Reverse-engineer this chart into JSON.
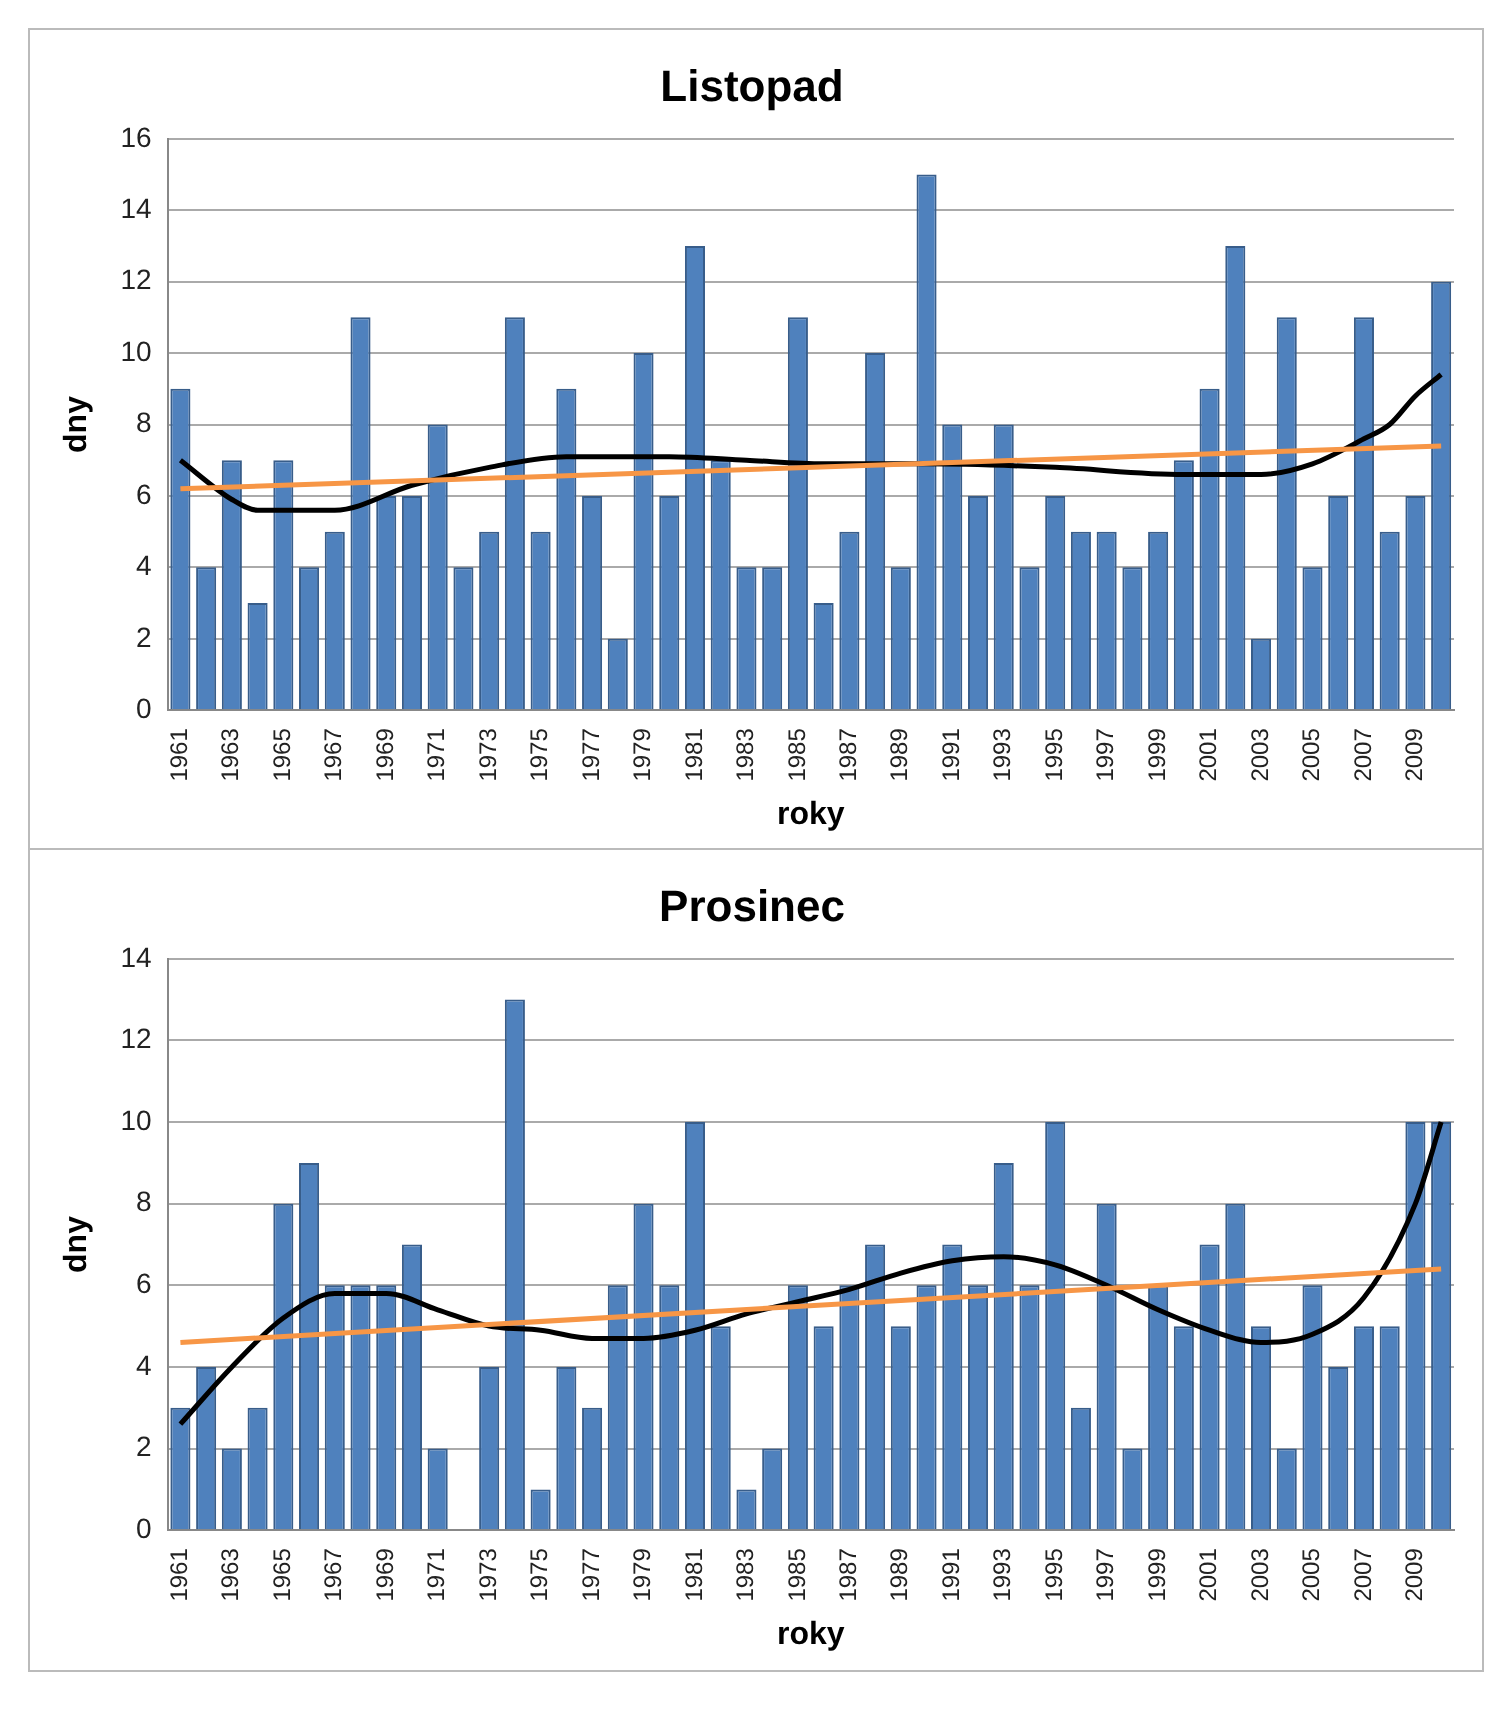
{
  "chart_data": [
    {
      "type": "bar",
      "title": "Listopad",
      "xlabel": "roky",
      "ylabel": "dny",
      "categories": [
        "1961",
        null,
        "1963",
        null,
        "1965",
        null,
        "1967",
        null,
        "1969",
        null,
        "1971",
        null,
        "1973",
        null,
        "1975",
        null,
        "1977",
        null,
        "1979",
        null,
        "1981",
        null,
        "1983",
        null,
        "1985",
        null,
        "1987",
        null,
        "1989",
        null,
        "1991",
        null,
        "1993",
        null,
        "1995",
        null,
        "1997",
        null,
        "1999",
        null,
        "2001",
        null,
        "2003",
        null,
        "2005",
        null,
        "2007",
        null,
        "2009",
        null
      ],
      "series": [
        {
          "color": "#4f81bd",
          "values": [
            9,
            4,
            7,
            3,
            7,
            4,
            5,
            11,
            6,
            6,
            8,
            4,
            5,
            11,
            5,
            9,
            6,
            2,
            10,
            6,
            13,
            7,
            4,
            4,
            11,
            3,
            5,
            10,
            4,
            15,
            8,
            6,
            8,
            4,
            6,
            5,
            5,
            4,
            5,
            7,
            9,
            13,
            2,
            11,
            4,
            6,
            11,
            5,
            6,
            12
          ]
        },
        {
          "type": "line",
          "color": "#f79646",
          "values": [
            6.2,
            null,
            null,
            null,
            null,
            null,
            null,
            null,
            null,
            null,
            null,
            null,
            null,
            null,
            null,
            null,
            null,
            null,
            null,
            null,
            null,
            null,
            null,
            null,
            null,
            null,
            null,
            null,
            null,
            null,
            null,
            null,
            null,
            null,
            null,
            null,
            null,
            null,
            null,
            null,
            null,
            null,
            null,
            null,
            null,
            null,
            null,
            null,
            null,
            7.4
          ]
        },
        {
          "type": "line",
          "color": "#000000",
          "values": [
            7,
            null,
            5.9,
            5.6,
            null,
            null,
            5.6,
            null,
            null,
            6.3,
            null,
            null,
            6.8,
            null,
            null,
            7.1,
            null,
            null,
            null,
            7.1,
            null,
            null,
            7,
            null,
            null,
            6.9,
            null,
            null,
            null,
            6.9,
            null,
            null,
            null,
            null,
            6.8,
            null,
            null,
            null,
            null,
            6.6,
            null,
            null,
            6.6,
            null,
            6.9,
            null,
            7.6,
            8,
            8.8,
            9.4
          ]
        }
      ],
      "ylim": [
        0,
        16
      ],
      "yticks": [
        0,
        2,
        4,
        6,
        8,
        10,
        12,
        14,
        16
      ],
      "grid": "y",
      "legend": false
    },
    {
      "type": "bar",
      "title": "Prosinec",
      "xlabel": "roky",
      "ylabel": "dny",
      "categories": [
        "1961",
        null,
        "1963",
        null,
        "1965",
        null,
        "1967",
        null,
        "1969",
        null,
        "1971",
        null,
        "1973",
        null,
        "1975",
        null,
        "1977",
        null,
        "1979",
        null,
        "1981",
        null,
        "1983",
        null,
        "1985",
        null,
        "1987",
        null,
        "1989",
        null,
        "1991",
        null,
        "1993",
        null,
        "1995",
        null,
        "1997",
        null,
        "1999",
        null,
        "2001",
        null,
        "2003",
        null,
        "2005",
        null,
        "2007",
        null,
        "2009",
        null
      ],
      "series": [
        {
          "color": "#4f81bd",
          "values": [
            3,
            4,
            2,
            3,
            8,
            9,
            6,
            6,
            6,
            7,
            2,
            0,
            4,
            13,
            1,
            4,
            3,
            6,
            8,
            6,
            10,
            5,
            1,
            2,
            6,
            5,
            6,
            7,
            5,
            6,
            7,
            6,
            9,
            6,
            10,
            3,
            8,
            2,
            6,
            5,
            7,
            8,
            5,
            2,
            6,
            4,
            5,
            5,
            10,
            10
          ]
        },
        {
          "type": "line",
          "color": "#f79646",
          "values": [
            4.6,
            null,
            null,
            null,
            null,
            null,
            null,
            null,
            null,
            null,
            null,
            null,
            null,
            null,
            null,
            null,
            null,
            null,
            null,
            null,
            null,
            null,
            null,
            null,
            null,
            null,
            null,
            null,
            null,
            null,
            null,
            null,
            null,
            null,
            null,
            null,
            null,
            null,
            null,
            null,
            null,
            null,
            null,
            null,
            null,
            null,
            null,
            null,
            null,
            6.4
          ]
        },
        {
          "type": "line",
          "color": "#000000",
          "values": [
            2.6,
            null,
            4,
            null,
            5.2,
            null,
            5.8,
            null,
            5.8,
            null,
            5.4,
            null,
            5,
            null,
            4.9,
            null,
            4.7,
            null,
            4.7,
            null,
            4.9,
            null,
            5.3,
            null,
            5.6,
            null,
            5.9,
            null,
            6.3,
            null,
            6.6,
            null,
            6.7,
            null,
            6.5,
            null,
            6,
            null,
            5.4,
            null,
            4.9,
            null,
            4.6,
            null,
            4.8,
            null,
            5.7,
            null,
            8,
            10
          ]
        }
      ],
      "ylim": [
        0,
        14
      ],
      "yticks": [
        0,
        2,
        4,
        6,
        8,
        10,
        12,
        14
      ],
      "grid": "y",
      "legend": false
    }
  ]
}
